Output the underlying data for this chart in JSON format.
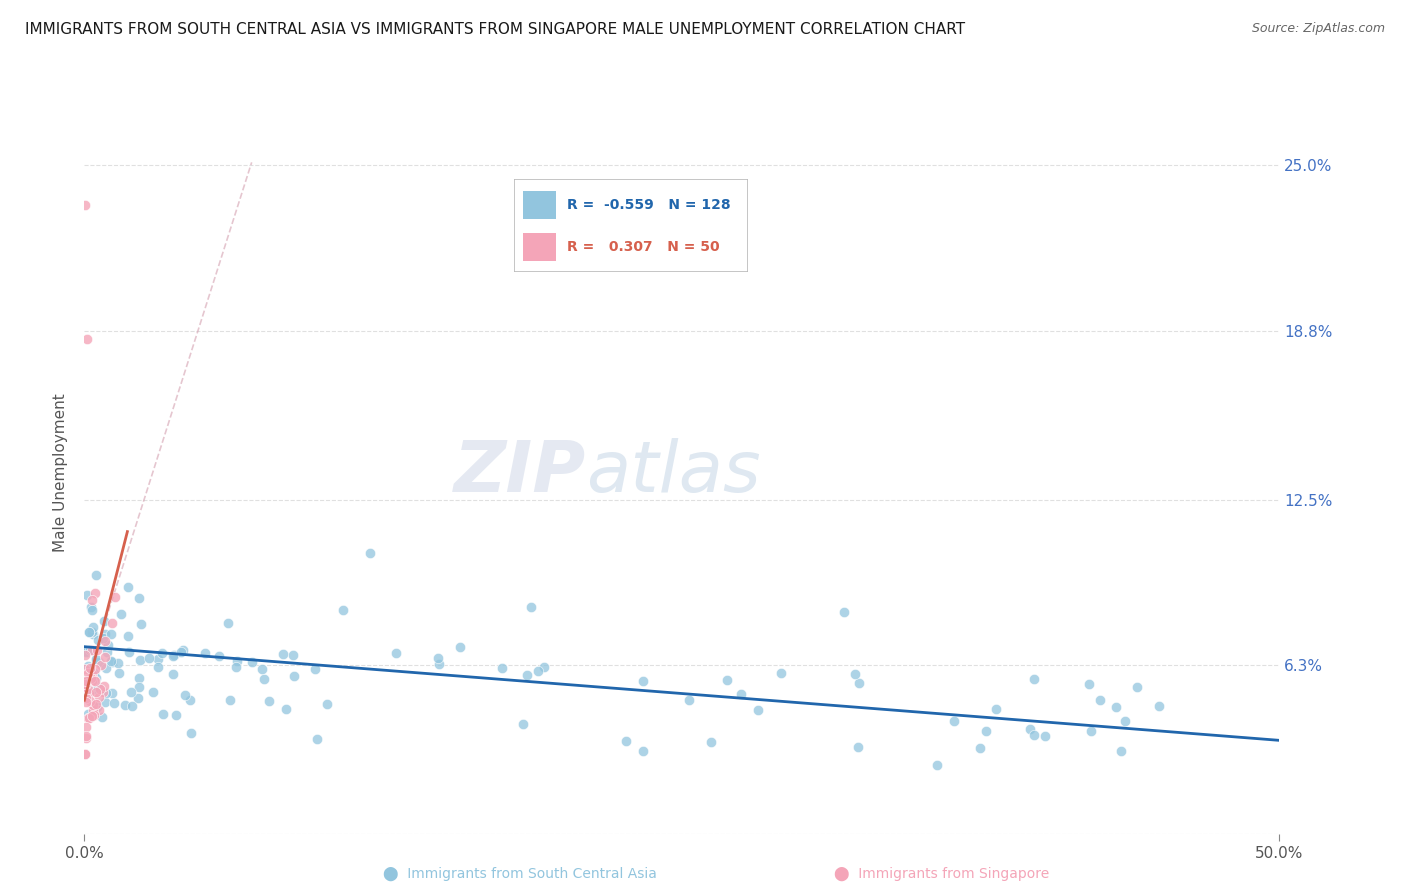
{
  "title": "IMMIGRANTS FROM SOUTH CENTRAL ASIA VS IMMIGRANTS FROM SINGAPORE MALE UNEMPLOYMENT CORRELATION CHART",
  "source": "Source: ZipAtlas.com",
  "ylabel": "Male Unemployment",
  "legend_blue_r": "-0.559",
  "legend_blue_n": "128",
  "legend_pink_r": "0.307",
  "legend_pink_n": "50",
  "blue_color": "#92c5de",
  "pink_color": "#f4a5b8",
  "trend_blue_color": "#2166ac",
  "trend_pink_color": "#d6604d",
  "ytick_values": [
    0.0,
    6.3,
    12.5,
    18.8,
    25.0
  ],
  "ytick_labels": [
    "",
    "6.3%",
    "12.5%",
    "18.8%",
    "25.0%"
  ],
  "ytick_color": "#4472c4",
  "xlim": [
    0,
    50
  ],
  "ylim": [
    0,
    27
  ],
  "figsize": [
    14.06,
    8.92
  ],
  "dpi": 100,
  "watermark_zip": "ZIP",
  "watermark_atlas": "atlas",
  "diag_color": "#e8a0b0"
}
